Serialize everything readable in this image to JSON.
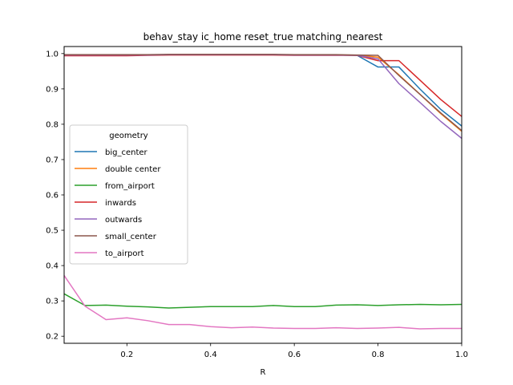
{
  "chart_data": {
    "type": "line",
    "title": "behav_stay ic_home reset_true matching_nearest",
    "xlabel": "R",
    "ylabel": "",
    "xlim": [
      0.05,
      1.0
    ],
    "ylim": [
      0.18,
      1.02
    ],
    "xticks": [
      0.2,
      0.4,
      0.6,
      0.8,
      1.0
    ],
    "xtick_labels": [
      "0.2",
      "0.4",
      "0.6",
      "0.8",
      "1.0"
    ],
    "yticks": [
      0.2,
      0.3,
      0.4,
      0.5,
      0.6,
      0.7,
      0.8,
      0.9,
      1.0
    ],
    "ytick_labels": [
      "0.2",
      "0.3",
      "0.4",
      "0.5",
      "0.6",
      "0.7",
      "0.8",
      "0.9",
      "1.0"
    ],
    "grid": false,
    "legend": {
      "title": "geometry",
      "position": "center-left"
    },
    "x": [
      0.05,
      0.1,
      0.15,
      0.2,
      0.25,
      0.3,
      0.35,
      0.4,
      0.45,
      0.5,
      0.55,
      0.6,
      0.65,
      0.7,
      0.75,
      0.8,
      0.85,
      0.9,
      0.95,
      1.0
    ],
    "series": [
      {
        "name": "big_center",
        "color": "#1f77b4",
        "values": [
          0.996,
          0.996,
          0.996,
          0.996,
          0.996,
          0.997,
          0.997,
          0.997,
          0.997,
          0.997,
          0.997,
          0.996,
          0.996,
          0.996,
          0.995,
          0.962,
          0.962,
          0.9,
          0.842,
          0.795
        ]
      },
      {
        "name": "double center",
        "color": "#ff7f0e",
        "values": [
          0.996,
          0.996,
          0.996,
          0.996,
          0.996,
          0.997,
          0.997,
          0.997,
          0.997,
          0.997,
          0.997,
          0.996,
          0.996,
          0.996,
          0.995,
          0.99,
          0.94,
          0.885,
          0.83,
          0.78
        ]
      },
      {
        "name": "from_airport",
        "color": "#2ca02c",
        "values": [
          0.32,
          0.287,
          0.288,
          0.285,
          0.283,
          0.28,
          0.282,
          0.284,
          0.284,
          0.284,
          0.287,
          0.284,
          0.284,
          0.288,
          0.289,
          0.287,
          0.289,
          0.29,
          0.289,
          0.29
        ]
      },
      {
        "name": "inwards",
        "color": "#d62728",
        "values": [
          0.994,
          0.994,
          0.994,
          0.994,
          0.995,
          0.996,
          0.996,
          0.996,
          0.996,
          0.996,
          0.996,
          0.995,
          0.995,
          0.995,
          0.995,
          0.98,
          0.98,
          0.925,
          0.87,
          0.822
        ]
      },
      {
        "name": "outwards",
        "color": "#9467bd",
        "values": [
          0.996,
          0.996,
          0.996,
          0.996,
          0.996,
          0.997,
          0.997,
          0.997,
          0.997,
          0.997,
          0.997,
          0.996,
          0.996,
          0.996,
          0.995,
          0.985,
          0.915,
          0.862,
          0.808,
          0.76
        ]
      },
      {
        "name": "small_center",
        "color": "#8c564b",
        "values": [
          0.997,
          0.997,
          0.997,
          0.997,
          0.997,
          0.998,
          0.998,
          0.998,
          0.998,
          0.998,
          0.998,
          0.997,
          0.997,
          0.997,
          0.996,
          0.995,
          0.938,
          0.885,
          0.832,
          0.782
        ]
      },
      {
        "name": "to_airport",
        "color": "#e377c2",
        "values": [
          0.372,
          0.285,
          0.247,
          0.252,
          0.244,
          0.233,
          0.233,
          0.227,
          0.224,
          0.226,
          0.223,
          0.222,
          0.222,
          0.224,
          0.222,
          0.223,
          0.225,
          0.221,
          0.222,
          0.222
        ]
      }
    ]
  }
}
